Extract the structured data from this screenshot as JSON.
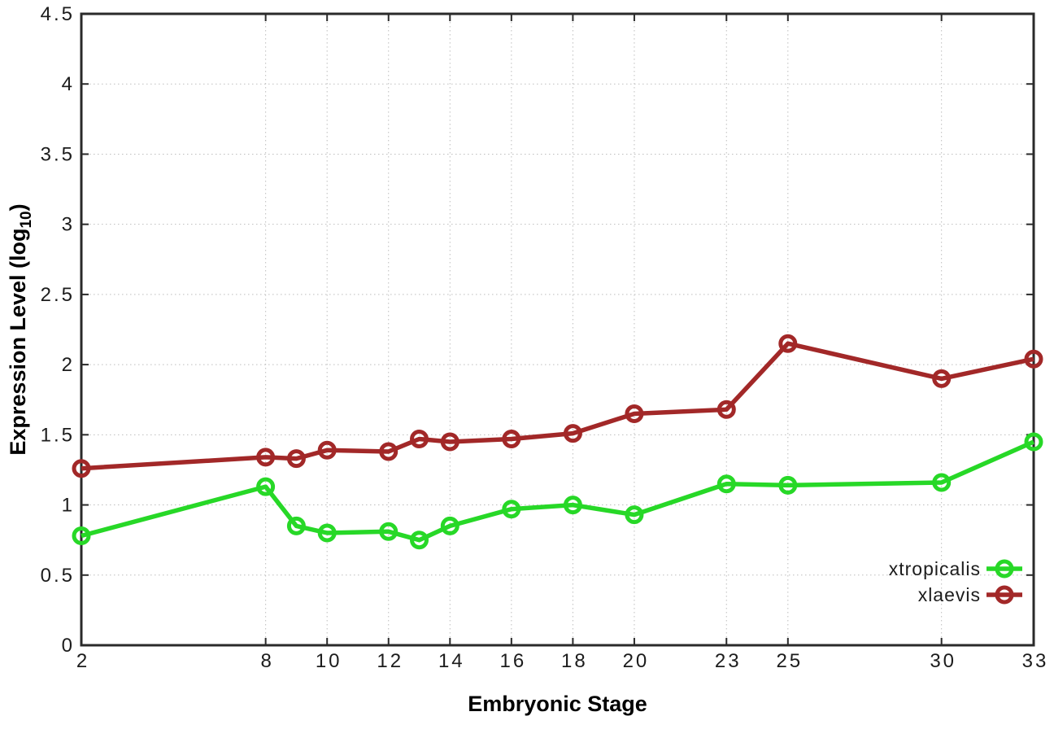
{
  "chart_data": {
    "type": "line",
    "title": "",
    "xlabel": "Embryonic Stage",
    "ylabel": "Expression Level (log10)",
    "ylabel_parts": {
      "text": "Expression Level (log",
      "subscript": "10",
      "suffix": ")"
    },
    "xlim": [
      2,
      33
    ],
    "ylim": [
      0,
      4.5
    ],
    "x_ticks": [
      2,
      8,
      10,
      12,
      14,
      16,
      18,
      20,
      23,
      25,
      30,
      33
    ],
    "y_ticks": [
      0,
      0.5,
      1,
      1.5,
      2,
      2.5,
      3,
      3.5,
      4,
      4.5
    ],
    "grid": true,
    "legend_position": "inside-bottom-right",
    "x": [
      2,
      8,
      9,
      10,
      12,
      13,
      14,
      16,
      18,
      20,
      23,
      25,
      30,
      33
    ],
    "series": [
      {
        "name": "xtropicalis",
        "color": "#27d827",
        "values": [
          0.78,
          1.13,
          0.85,
          0.8,
          0.81,
          0.75,
          0.85,
          0.97,
          1.0,
          0.93,
          1.15,
          1.14,
          1.16,
          1.45
        ]
      },
      {
        "name": "xlaevis",
        "color": "#a22828",
        "values": [
          1.26,
          1.34,
          1.33,
          1.39,
          1.38,
          1.47,
          1.45,
          1.47,
          1.51,
          1.65,
          1.68,
          2.15,
          1.9,
          2.04
        ]
      }
    ]
  },
  "colors": {
    "background": "#ffffff",
    "grid": "#bdbdbd",
    "axis": "#2a2a2a",
    "text": "#1c1c1c",
    "label_text": "#000000"
  }
}
